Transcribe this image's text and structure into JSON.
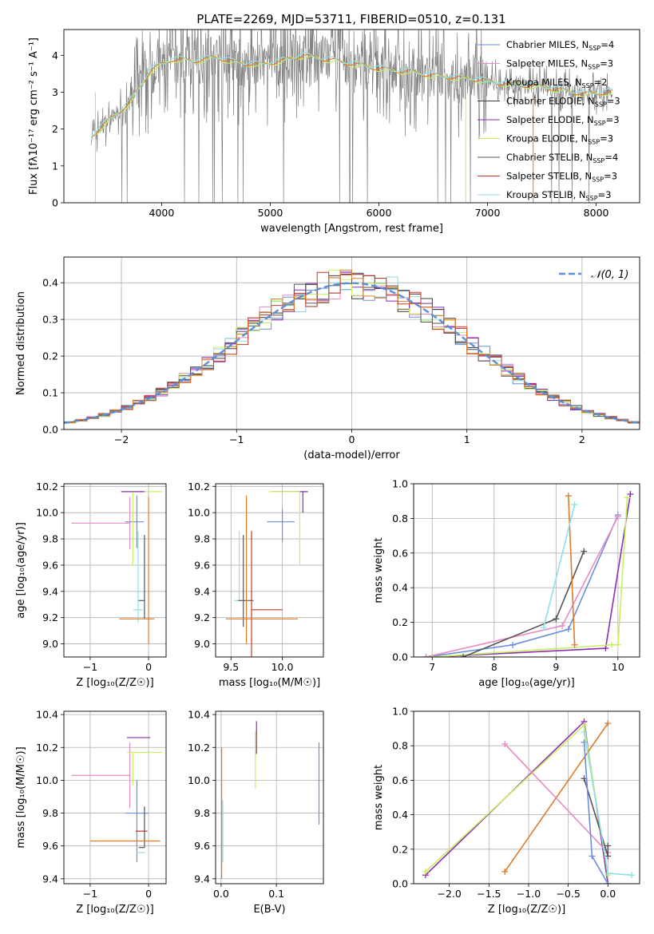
{
  "figure": {
    "title": "PLATE=2269, MJD=53711, FIBERID=0510, z=0.131"
  },
  "colors": {
    "Chabrier MILES": "#6a8fe0",
    "Salpeter MILES": "#e88bc4",
    "Kroupa MILES": "#8fd9d9",
    "Chabrier ELODIE": "#3a3a3a",
    "Salpeter ELODIE": "#8c2fb0",
    "Kroupa ELODIE": "#c8f060",
    "Chabrier STELIB": "#555555",
    "Salpeter STELIB": "#c0392b",
    "Kroupa STELIB": "#8fe0e8",
    "orange": "#e07b28",
    "grid": "#b0b0b0",
    "spectrum": "#808080"
  },
  "chart_data": [
    {
      "id": "spectrum",
      "type": "line",
      "xlabel": "wavelength [Angstrom, rest frame]",
      "ylabel": "Flux [fλ10⁻¹⁷ erg cm⁻² s⁻¹ A⁻¹]",
      "xlim": [
        3100,
        8400
      ],
      "ylim": [
        0,
        4.7
      ],
      "xticks": [
        "4000",
        "5000",
        "6000",
        "7000",
        "8000"
      ],
      "yticks": [
        "0",
        "1",
        "2",
        "3",
        "4"
      ],
      "grid": false,
      "legend_position": "right",
      "legend": [
        "Chabrier MILES, N_SSP=4",
        "Salpeter MILES, N_SSP=3",
        "Kroupa MILES, N_SSP=2",
        "Chabrier ELODIE, N_SSP=3",
        "Salpeter ELODIE, N_SSP=3",
        "Kroupa ELODIE, N_SSP=3",
        "Chabrier STELIB, N_SSP=4",
        "Salpeter STELIB, N_SSP=3",
        "Kroupa STELIB, N_SSP=3"
      ],
      "model_continuum": {
        "x": [
          3350,
          3500,
          3700,
          3900,
          4100,
          4300,
          4500,
          4700,
          4900,
          5100,
          5300,
          5500,
          5700,
          5900,
          6100,
          6300,
          6500,
          6700,
          6900,
          7100,
          7300,
          7500,
          7700,
          7900,
          8100
        ],
        "y": [
          1.8,
          2.2,
          2.7,
          3.6,
          3.9,
          3.85,
          3.95,
          3.8,
          3.75,
          3.85,
          4.0,
          3.9,
          3.8,
          3.7,
          3.6,
          3.55,
          3.45,
          3.4,
          3.35,
          3.25,
          3.2,
          3.15,
          3.05,
          2.95,
          3.0
        ]
      }
    },
    {
      "id": "residual-histogram",
      "type": "line",
      "xlabel": "(data-model)/error",
      "ylabel": "Normed distribution",
      "xlim": [
        -2.5,
        2.5
      ],
      "ylim": [
        0,
        0.47
      ],
      "xticks": [
        "−2",
        "−1",
        "0",
        "1",
        "2"
      ],
      "yticks": [
        "0.0",
        "0.1",
        "0.2",
        "0.3",
        "0.4"
      ],
      "grid": true,
      "legend": [
        "𝒩(0, 1)"
      ],
      "legend_position": "top-right",
      "gaussian": {
        "mean": 0,
        "sigma": 1
      }
    },
    {
      "id": "age-vs-Z",
      "type": "scatter",
      "xlabel": "Z [log₁₀(Z/Z☉)]",
      "ylabel": "age  [log₁₀(age/yr)]",
      "xlim": [
        -1.45,
        0.3
      ],
      "ylim": [
        8.9,
        10.22
      ],
      "xticks": [
        "−1",
        "0"
      ],
      "yticks": [
        "9.0",
        "9.2",
        "9.4",
        "9.6",
        "9.8",
        "10.0",
        "10.2"
      ],
      "grid": true,
      "errorbars": [
        {
          "model": "Salpeter MILES",
          "x": -0.32,
          "y": 9.92,
          "xerr": [
            1.0,
            0.0
          ],
          "yerr": [
            0.2,
            0.2
          ]
        },
        {
          "model": "Chabrier MILES",
          "x": -0.2,
          "y": 9.93,
          "xerr": [
            0.2,
            0.12
          ],
          "yerr": [
            0.2,
            0.2
          ]
        },
        {
          "model": "Kroupa ELODIE",
          "x": -0.27,
          "y": 10.16,
          "xerr": [
            0.1,
            0.5
          ],
          "yerr": [
            0.56,
            0.0
          ]
        },
        {
          "model": "Salpeter ELODIE",
          "x": -0.27,
          "y": 10.16,
          "xerr": [
            0.2,
            0.2
          ],
          "yerr": [
            0.0,
            0.0
          ]
        },
        {
          "model": "Kroupa STELIB",
          "x": -0.18,
          "y": 9.26,
          "xerr": [
            0.08,
            0.08
          ],
          "yerr": [
            0.1,
            0.6
          ]
        },
        {
          "model": "Chabrier STELIB",
          "x": -0.07,
          "y": 9.33,
          "xerr": [
            0.1,
            0.0
          ],
          "yerr": [
            0.14,
            0.5
          ]
        },
        {
          "model": "orange",
          "x": 0.0,
          "y": 9.19,
          "xerr": [
            0.5,
            0.1
          ],
          "yerr": [
            0.19,
            0.93
          ]
        }
      ]
    },
    {
      "id": "age-vs-mass",
      "type": "scatter",
      "xlabel": "mass [log₁₀(M/M☉)]",
      "ylabel": "",
      "xlim": [
        9.35,
        10.4
      ],
      "ylim": [
        8.9,
        10.22
      ],
      "xticks": [
        "9.5",
        "10.0"
      ],
      "yticks": [
        "9.0",
        "9.2",
        "9.4",
        "9.6",
        "9.8",
        "10.0",
        "10.2"
      ],
      "grid": true,
      "errorbars": [
        {
          "model": "Chabrier MILES",
          "x": 10.0,
          "y": 9.93,
          "xerr": [
            0.15,
            0.12
          ],
          "yerr": [
            0.15,
            0.1
          ]
        },
        {
          "model": "Salpeter ELODIE",
          "x": 10.2,
          "y": 10.16,
          "xerr": [
            0.3,
            0.05
          ],
          "yerr": [
            0.16,
            0.0
          ]
        },
        {
          "model": "Kroupa ELODIE",
          "x": 10.17,
          "y": 10.16,
          "xerr": [
            0.3,
            0.0
          ],
          "yerr": [
            0.56,
            0.0
          ]
        },
        {
          "model": "Kroupa STELIB",
          "x": 9.58,
          "y": 9.33,
          "xerr": [
            0.05,
            0.0
          ],
          "yerr": [
            0.0,
            0.53
          ]
        },
        {
          "model": "Chabrier STELIB",
          "x": 9.62,
          "y": 9.33,
          "xerr": [
            0.05,
            0.1
          ],
          "yerr": [
            0.2,
            0.5
          ]
        },
        {
          "model": "Salpeter STELIB",
          "x": 9.7,
          "y": 9.26,
          "xerr": [
            0.0,
            0.3
          ],
          "yerr": [
            0.4,
            0.6
          ]
        },
        {
          "model": "orange",
          "x": 9.65,
          "y": 9.19,
          "xerr": [
            0.2,
            0.5
          ],
          "yerr": [
            0.19,
            0.94
          ]
        }
      ]
    },
    {
      "id": "mass-weight-vs-age",
      "type": "line",
      "xlabel": "age  [log₁₀(age/yr)]",
      "ylabel": "mass weight",
      "xlim": [
        6.7,
        10.35
      ],
      "ylim": [
        0,
        1.0
      ],
      "xticks": [
        "7",
        "8",
        "9",
        "10"
      ],
      "yticks": [
        "0.0",
        "0.2",
        "0.4",
        "0.6",
        "0.8",
        "1.0"
      ],
      "grid": true,
      "series": [
        {
          "model": "Chabrier MILES",
          "x": [
            6.9,
            8.3,
            9.2,
            10.0
          ],
          "y": [
            0.0,
            0.07,
            0.16,
            0.82
          ]
        },
        {
          "model": "Salpeter MILES",
          "x": [
            6.9,
            9.1,
            10.0
          ],
          "y": [
            0.0,
            0.18,
            0.81
          ]
        },
        {
          "model": "Salpeter ELODIE",
          "x": [
            7.0,
            9.8,
            10.2
          ],
          "y": [
            0.0,
            0.05,
            0.94
          ]
        },
        {
          "model": "Kroupa ELODIE",
          "x": [
            7.0,
            9.9,
            10.0,
            10.15
          ],
          "y": [
            0.0,
            0.07,
            0.07,
            0.92
          ]
        },
        {
          "model": "Chabrier STELIB",
          "x": [
            7.5,
            9.0,
            9.45
          ],
          "y": [
            0.0,
            0.22,
            0.61
          ]
        },
        {
          "model": "orange",
          "x": [
            9.2,
            9.3
          ],
          "y": [
            0.93,
            0.07
          ]
        },
        {
          "model": "Kroupa STELIB",
          "x": [
            8.8,
            9.3
          ],
          "y": [
            0.17,
            0.88
          ]
        }
      ]
    },
    {
      "id": "mass-vs-Z",
      "type": "scatter",
      "xlabel": "Z [log₁₀(Z/Z☉)]",
      "ylabel": "mass [log₁₀(M/M☉)]",
      "xlim": [
        -1.45,
        0.3
      ],
      "ylim": [
        9.37,
        10.42
      ],
      "xticks": [
        "−1",
        "0"
      ],
      "yticks": [
        "9.4",
        "9.6",
        "9.8",
        "10.0",
        "10.2",
        "10.4"
      ],
      "grid": true,
      "errorbars": [
        {
          "model": "Salpeter MILES",
          "x": -0.32,
          "y": 10.03,
          "xerr": [
            1.0,
            0.0
          ],
          "yerr": [
            0.2,
            0.2
          ]
        },
        {
          "model": "Salpeter ELODIE",
          "x": -0.27,
          "y": 10.26,
          "xerr": [
            0.1,
            0.3
          ],
          "yerr": [
            0.0,
            0.0
          ]
        },
        {
          "model": "Kroupa ELODIE",
          "x": -0.27,
          "y": 10.17,
          "xerr": [
            0.1,
            0.5
          ],
          "yerr": [
            0.2,
            0.0
          ]
        },
        {
          "model": "Chabrier MILES",
          "x": -0.2,
          "y": 9.8,
          "xerr": [
            0.2,
            0.2
          ],
          "yerr": [
            0.3,
            0.2
          ]
        },
        {
          "model": "Salpeter STELIB",
          "x": -0.12,
          "y": 9.69,
          "xerr": [
            0.1,
            0.1
          ],
          "yerr": [
            0.0,
            0.0
          ]
        },
        {
          "model": "Chabrier STELIB",
          "x": -0.07,
          "y": 9.59,
          "xerr": [
            0.1,
            0.0
          ],
          "yerr": [
            0.0,
            0.25
          ]
        },
        {
          "model": "Kroupa STELIB",
          "x": -0.1,
          "y": 9.56,
          "xerr": [
            0.1,
            0.05
          ],
          "yerr": [
            0.0,
            0.0
          ]
        },
        {
          "model": "orange",
          "x": -0.5,
          "y": 9.63,
          "xerr": [
            0.5,
            0.7
          ],
          "yerr": [
            0.0,
            0.0
          ]
        }
      ]
    },
    {
      "id": "mass-vs-ebv",
      "type": "scatter",
      "xlabel": "E(B-V)",
      "ylabel": "",
      "xlim": [
        -0.01,
        0.185
      ],
      "ylim": [
        9.37,
        10.42
      ],
      "xticks": [
        "0.0",
        "0.1"
      ],
      "yticks": [
        "9.4",
        "9.6",
        "9.8",
        "10.0",
        "10.2",
        "10.4"
      ],
      "grid": true,
      "errorbars": [
        {
          "model": "Salpeter ELODIE",
          "x": 0.064,
          "y": 10.26,
          "xerr": [
            0,
            0
          ],
          "yerr": [
            0.1,
            0.1
          ]
        },
        {
          "model": "Kroupa ELODIE",
          "x": 0.062,
          "y": 10.1,
          "xerr": [
            0,
            0
          ],
          "yerr": [
            0.15,
            0.2
          ]
        },
        {
          "model": "Chabrier MILES",
          "x": 0.177,
          "y": 9.98,
          "xerr": [
            0,
            0
          ],
          "yerr": [
            0.25,
            0.25
          ]
        },
        {
          "model": "orange",
          "x": 0.001,
          "y": 9.8,
          "xerr": [
            0,
            0
          ],
          "yerr": [
            0.4,
            0.4
          ]
        },
        {
          "model": "Kroupa STELIB",
          "x": 0.003,
          "y": 9.7,
          "xerr": [
            0,
            0
          ],
          "yerr": [
            0.2,
            0.18
          ]
        }
      ]
    },
    {
      "id": "mass-weight-vs-Z",
      "type": "line",
      "xlabel": "Z [log₁₀(Z/Z☉)]",
      "ylabel": "mass weight",
      "xlim": [
        -2.45,
        0.4
      ],
      "ylim": [
        0,
        1.0
      ],
      "xticks": [
        "−2.0",
        "−1.5",
        "−1.0",
        "−0.5",
        "0.0"
      ],
      "yticks": [
        "0.0",
        "0.2",
        "0.4",
        "0.6",
        "0.8",
        "1.0"
      ],
      "grid": true,
      "series": [
        {
          "model": "Salpeter ELODIE",
          "x": [
            -2.3,
            -0.3,
            0.0
          ],
          "y": [
            0.05,
            0.94,
            0.0
          ]
        },
        {
          "model": "Kroupa ELODIE",
          "x": [
            -2.3,
            -0.3,
            0.0
          ],
          "y": [
            0.07,
            0.92,
            0.05
          ]
        },
        {
          "model": "orange",
          "x": [
            -1.3,
            0.0
          ],
          "y": [
            0.07,
            0.93
          ]
        },
        {
          "model": "Salpeter MILES",
          "x": [
            -1.3,
            0.0
          ],
          "y": [
            0.81,
            0.18
          ]
        },
        {
          "model": "Chabrier STELIB",
          "x": [
            -0.3,
            0.0,
            0.0
          ],
          "y": [
            0.61,
            0.16,
            0.22
          ]
        },
        {
          "model": "Chabrier MILES",
          "x": [
            -0.3,
            -0.2,
            0.0
          ],
          "y": [
            0.82,
            0.16,
            0.0
          ]
        },
        {
          "model": "Kroupa STELIB",
          "x": [
            -0.3,
            0.0,
            0.3
          ],
          "y": [
            0.88,
            0.06,
            0.05
          ]
        }
      ]
    }
  ]
}
